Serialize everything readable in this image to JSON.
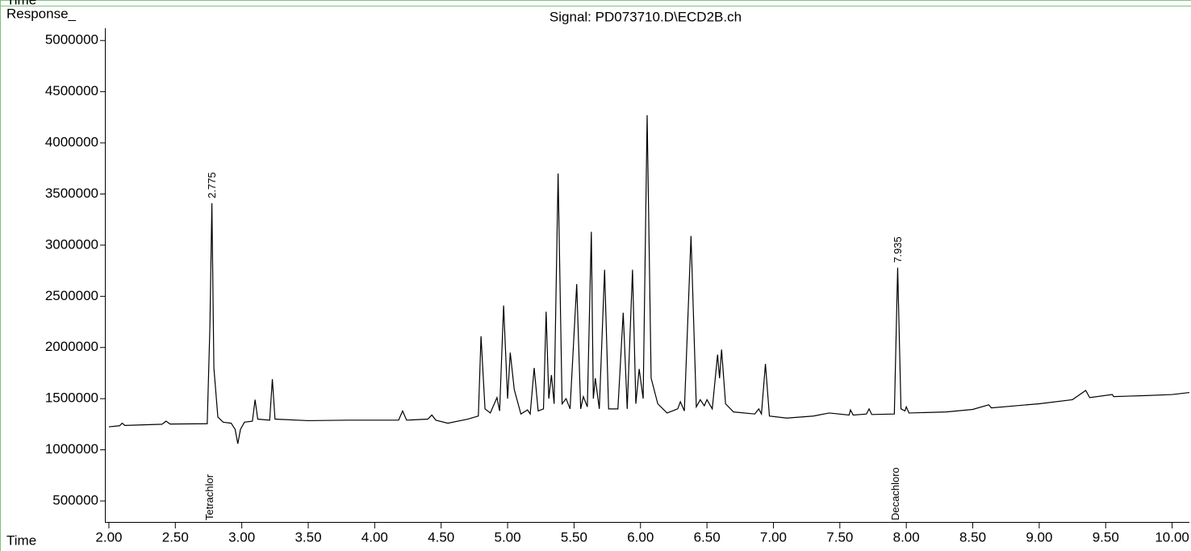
{
  "chart_data": {
    "type": "line",
    "corner_label": "Time",
    "y_axis_label": "Response_",
    "x_axis_label": "Time",
    "title": "Signal: PD073710.D\\ECD2B.ch",
    "color": "#000000",
    "xlim": [
      1.97,
      10.13
    ],
    "ylim": [
      295000,
      5120000
    ],
    "xticks": [
      {
        "value": 2,
        "label": "2.00"
      },
      {
        "value": 2.5,
        "label": "2.50"
      },
      {
        "value": 3,
        "label": "3.00"
      },
      {
        "value": 3.5,
        "label": "3.50"
      },
      {
        "value": 4,
        "label": "4.00"
      },
      {
        "value": 4.5,
        "label": "4.50"
      },
      {
        "value": 5,
        "label": "5.00"
      },
      {
        "value": 5.5,
        "label": "5.50"
      },
      {
        "value": 6,
        "label": "6.00"
      },
      {
        "value": 6.5,
        "label": "6.50"
      },
      {
        "value": 7,
        "label": "7.00"
      },
      {
        "value": 7.5,
        "label": "7.50"
      },
      {
        "value": 8,
        "label": "8.00"
      },
      {
        "value": 8.5,
        "label": "8.50"
      },
      {
        "value": 9,
        "label": "9.00"
      },
      {
        "value": 9.5,
        "label": "9.50"
      },
      {
        "value": 10,
        "label": "10.00"
      }
    ],
    "yticks": [
      500000,
      1000000,
      1500000,
      2000000,
      2500000,
      3000000,
      3500000,
      4000000,
      4500000,
      5000000
    ],
    "peak_labels": [
      {
        "value": 2.775,
        "label": "2.775"
      },
      {
        "value": 7.935,
        "label": "7.935"
      }
    ],
    "compound_labels": [
      {
        "value": 2.775,
        "label": "Tetrachlor"
      },
      {
        "value": 7.935,
        "label": "Decachloro"
      }
    ],
    "x": [
      2.0,
      2.08,
      2.1,
      2.12,
      2.4,
      2.43,
      2.46,
      2.74,
      2.76,
      2.775,
      2.79,
      2.82,
      2.86,
      2.92,
      2.95,
      2.97,
      2.99,
      3.02,
      3.08,
      3.1,
      3.12,
      3.21,
      3.23,
      3.25,
      3.5,
      3.8,
      4.0,
      4.18,
      4.21,
      4.24,
      4.4,
      4.43,
      4.46,
      4.55,
      4.7,
      4.78,
      4.8,
      4.83,
      4.87,
      4.92,
      4.94,
      4.97,
      5.0,
      5.02,
      5.05,
      5.1,
      5.15,
      5.17,
      5.2,
      5.23,
      5.27,
      5.29,
      5.31,
      5.33,
      5.35,
      5.38,
      5.41,
      5.44,
      5.47,
      5.52,
      5.55,
      5.57,
      5.6,
      5.63,
      5.645,
      5.66,
      5.69,
      5.73,
      5.76,
      5.83,
      5.87,
      5.9,
      5.94,
      5.965,
      5.99,
      6.02,
      6.05,
      6.08,
      6.1,
      6.13,
      6.2,
      6.28,
      6.3,
      6.33,
      6.38,
      6.42,
      6.45,
      6.48,
      6.5,
      6.54,
      6.58,
      6.595,
      6.61,
      6.64,
      6.7,
      6.86,
      6.89,
      6.91,
      6.94,
      6.97,
      7.1,
      7.3,
      7.42,
      7.57,
      7.58,
      7.6,
      7.7,
      7.72,
      7.74,
      7.91,
      7.935,
      7.96,
      7.99,
      8.0,
      8.02,
      8.3,
      8.5,
      8.62,
      8.64,
      9.0,
      9.25,
      9.35,
      9.38,
      9.55,
      9.56,
      9.8,
      10.0,
      10.13
    ],
    "values": [
      1225000,
      1235000,
      1260000,
      1238000,
      1250000,
      1280000,
      1252000,
      1255000,
      2200000,
      3410000,
      1800000,
      1320000,
      1270000,
      1260000,
      1200000,
      1060000,
      1200000,
      1270000,
      1280000,
      1490000,
      1300000,
      1290000,
      1690000,
      1300000,
      1285000,
      1290000,
      1290000,
      1290000,
      1380000,
      1290000,
      1300000,
      1340000,
      1290000,
      1260000,
      1300000,
      1330000,
      2110000,
      1400000,
      1360000,
      1510000,
      1380000,
      2410000,
      1500000,
      1950000,
      1590000,
      1350000,
      1390000,
      1350000,
      1800000,
      1380000,
      1400000,
      2350000,
      1500000,
      1730000,
      1450000,
      3700000,
      1450000,
      1500000,
      1400000,
      2620000,
      1400000,
      1520000,
      1420000,
      3130000,
      1500000,
      1700000,
      1400000,
      2760000,
      1400000,
      1400000,
      2340000,
      1400000,
      2760000,
      1450000,
      1790000,
      1500000,
      4270000,
      1700000,
      1600000,
      1450000,
      1360000,
      1400000,
      1470000,
      1380000,
      3090000,
      1420000,
      1490000,
      1430000,
      1490000,
      1400000,
      1930000,
      1700000,
      1980000,
      1450000,
      1370000,
      1350000,
      1400000,
      1350000,
      1840000,
      1330000,
      1310000,
      1330000,
      1360000,
      1340000,
      1390000,
      1340000,
      1350000,
      1400000,
      1345000,
      1350000,
      2780000,
      1400000,
      1380000,
      1420000,
      1360000,
      1370000,
      1395000,
      1440000,
      1410000,
      1450000,
      1490000,
      1580000,
      1510000,
      1540000,
      1520000,
      1530000,
      1540000,
      1560000
    ]
  }
}
